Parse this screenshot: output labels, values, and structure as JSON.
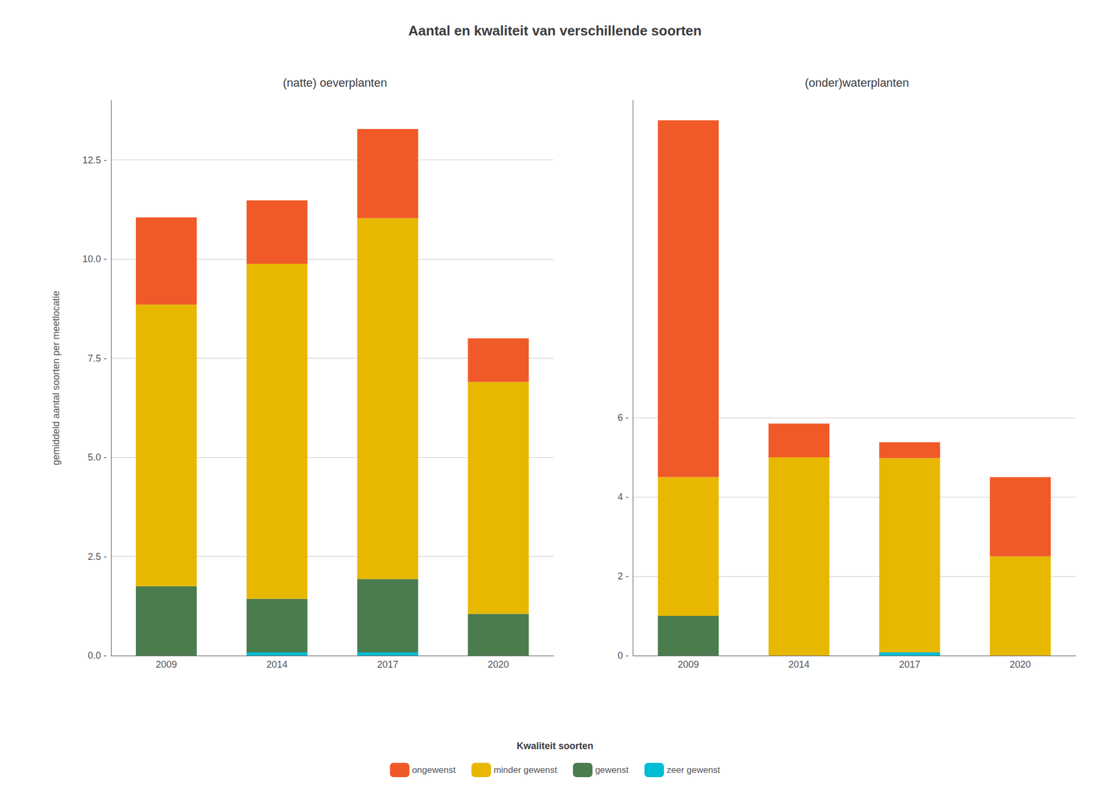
{
  "chart_data": [
    {
      "type": "bar",
      "stacked": true,
      "title": "Aantal en kwaliteit van verschillende soorten",
      "subtitle": "(natte) oeverplanten",
      "ylabel": "gemiddeld aantal soorten per meetlocatie",
      "categories": [
        "2009",
        "2014",
        "2017",
        "2020"
      ],
      "series": [
        {
          "name": "zeer gewenst",
          "color": "#00BCD4",
          "values": [
            0.0,
            0.08,
            0.08,
            0.0
          ]
        },
        {
          "name": "gewenst",
          "color": "#4A7C4E",
          "values": [
            1.75,
            1.35,
            1.85,
            1.05
          ]
        },
        {
          "name": "minder gewenst",
          "color": "#E8B800",
          "values": [
            7.1,
            8.45,
            9.1,
            5.85
          ]
        },
        {
          "name": "ongewenst",
          "color": "#F05A28",
          "values": [
            2.2,
            1.6,
            2.25,
            1.1
          ]
        }
      ],
      "ylim": [
        0,
        14.0
      ],
      "yticks": [
        {
          "value": 0.0,
          "label": "0.0 -"
        },
        {
          "value": 2.5,
          "label": "2.5 -"
        },
        {
          "value": 5.0,
          "label": "5.0 -"
        },
        {
          "value": 7.5,
          "label": "7.5 -"
        },
        {
          "value": 10.0,
          "label": "10.0 -"
        },
        {
          "value": 12.5,
          "label": "12.5 -"
        }
      ],
      "grid": true,
      "legend": "bottom",
      "legend_title": "Kwaliteit soorten"
    },
    {
      "type": "bar",
      "stacked": true,
      "subtitle": "(onder)waterplanten",
      "categories": [
        "2009",
        "2014",
        "2017",
        "2020"
      ],
      "series": [
        {
          "name": "zeer gewenst",
          "color": "#00BCD4",
          "values": [
            0.0,
            0.0,
            0.08,
            0.0
          ]
        },
        {
          "name": "gewenst",
          "color": "#4A7C4E",
          "values": [
            1.0,
            0.0,
            0.0,
            0.0
          ]
        },
        {
          "name": "minder gewenst",
          "color": "#E8B800",
          "values": [
            3.5,
            5.0,
            4.9,
            2.5
          ]
        },
        {
          "name": "ongewenst",
          "color": "#F05A28",
          "values": [
            9.0,
            0.85,
            0.4,
            2.0
          ]
        }
      ],
      "ylim": [
        0,
        14.0
      ],
      "yticks": [
        {
          "value": 0,
          "label": "0 -"
        },
        {
          "value": 2,
          "label": "2 -"
        },
        {
          "value": 4,
          "label": "4 -"
        },
        {
          "value": 6,
          "label": "6 -"
        }
      ],
      "grid": true
    }
  ]
}
